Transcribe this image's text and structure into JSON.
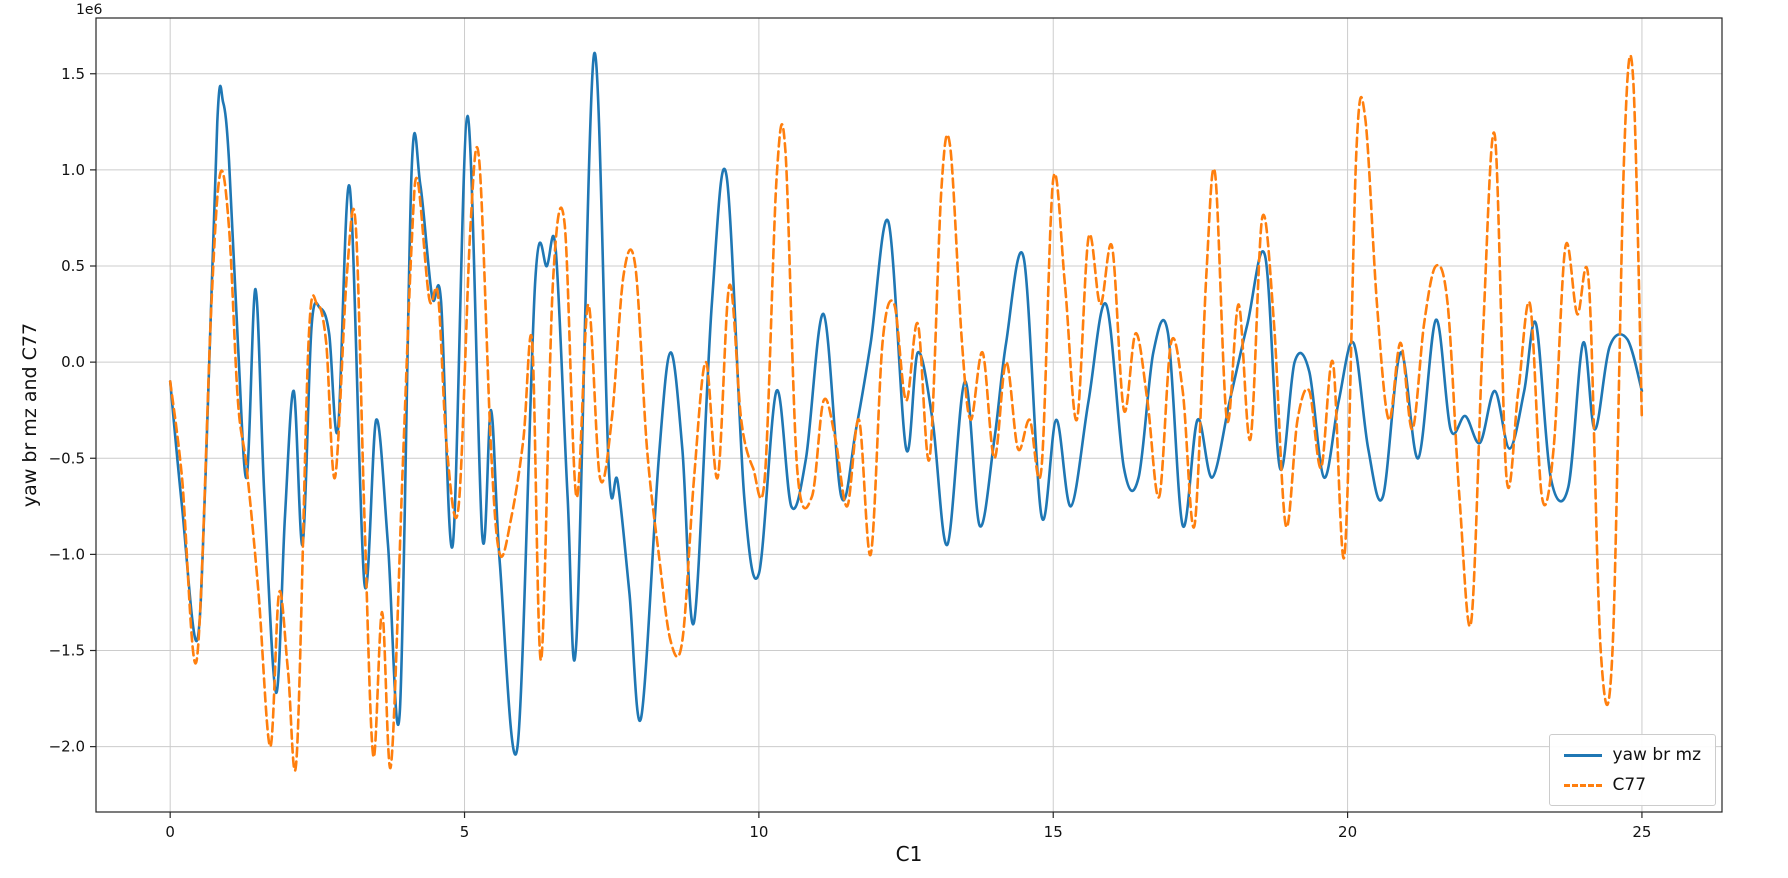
{
  "chart_data": {
    "type": "line",
    "title": "",
    "xlabel": "C1",
    "ylabel": "yaw br mz and C77",
    "y_offset_text": "1e6",
    "y_unit_scale": 1000000,
    "grid": true,
    "legend_position": "lower right",
    "xlim": [
      -1.26,
      26.36
    ],
    "ylim": [
      -2.34,
      1.79
    ],
    "xticks": [
      0,
      5,
      10,
      15,
      20,
      25
    ],
    "xtick_labels": [
      "0",
      "5",
      "10",
      "15",
      "20",
      "25"
    ],
    "yticks": [
      -2.0,
      -1.5,
      -1.0,
      -0.5,
      0.0,
      0.5,
      1.0,
      1.5
    ],
    "ytick_labels": [
      "−2.0",
      "−1.5",
      "−1.0",
      "−0.5",
      "0.0",
      "0.5",
      "1.0",
      "1.5"
    ],
    "colors": {
      "series1": "#1f77b4",
      "series2": "#ff7f0e",
      "grid": "#cccccc",
      "spine": "#262626",
      "background": "#ffffff"
    },
    "series": [
      {
        "name": "yaw br mz",
        "color": "#1f77b4",
        "style": "solid",
        "points": [
          [
            0,
            -0.1
          ],
          [
            0.2,
            -0.75
          ],
          [
            0.45,
            -1.45
          ],
          [
            0.6,
            -0.6
          ],
          [
            0.8,
            1.25
          ],
          [
            0.9,
            1.35
          ],
          [
            1.0,
            1.05
          ],
          [
            1.15,
            0.1
          ],
          [
            1.3,
            -0.6
          ],
          [
            1.45,
            0.38
          ],
          [
            1.6,
            -0.7
          ],
          [
            1.8,
            -1.72
          ],
          [
            1.95,
            -0.8
          ],
          [
            2.1,
            -0.15
          ],
          [
            2.25,
            -0.95
          ],
          [
            2.4,
            0.18
          ],
          [
            2.55,
            0.28
          ],
          [
            2.7,
            0.15
          ],
          [
            2.85,
            -0.35
          ],
          [
            3.05,
            0.91
          ],
          [
            3.3,
            -1.15
          ],
          [
            3.5,
            -0.3
          ],
          [
            3.7,
            -0.95
          ],
          [
            3.9,
            -1.82
          ],
          [
            4.1,
            0.98
          ],
          [
            4.25,
            0.92
          ],
          [
            4.45,
            0.34
          ],
          [
            4.6,
            0.32
          ],
          [
            4.8,
            -0.95
          ],
          [
            5.05,
            1.28
          ],
          [
            5.3,
            -0.9
          ],
          [
            5.45,
            -0.25
          ],
          [
            5.6,
            -1.05
          ],
          [
            5.9,
            -2.0
          ],
          [
            6.2,
            0.42
          ],
          [
            6.4,
            0.5
          ],
          [
            6.55,
            0.58
          ],
          [
            6.75,
            -0.7
          ],
          [
            6.9,
            -1.45
          ],
          [
            7.2,
            1.6
          ],
          [
            7.45,
            -0.55
          ],
          [
            7.6,
            -0.62
          ],
          [
            7.8,
            -1.2
          ],
          [
            8.0,
            -1.85
          ],
          [
            8.3,
            -0.5
          ],
          [
            8.5,
            0.05
          ],
          [
            8.7,
            -0.45
          ],
          [
            8.9,
            -1.35
          ],
          [
            9.2,
            0.3
          ],
          [
            9.45,
            0.97
          ],
          [
            9.75,
            -0.7
          ],
          [
            10.0,
            -1.1
          ],
          [
            10.3,
            -0.15
          ],
          [
            10.55,
            -0.75
          ],
          [
            10.8,
            -0.5
          ],
          [
            11.1,
            0.25
          ],
          [
            11.4,
            -0.7
          ],
          [
            11.65,
            -0.35
          ],
          [
            11.9,
            0.1
          ],
          [
            12.2,
            0.73
          ],
          [
            12.5,
            -0.45
          ],
          [
            12.7,
            0.05
          ],
          [
            12.95,
            -0.3
          ],
          [
            13.2,
            -0.95
          ],
          [
            13.5,
            -0.1
          ],
          [
            13.75,
            -0.85
          ],
          [
            14.0,
            -0.4
          ],
          [
            14.2,
            0.1
          ],
          [
            14.5,
            0.54
          ],
          [
            14.8,
            -0.8
          ],
          [
            15.05,
            -0.3
          ],
          [
            15.3,
            -0.75
          ],
          [
            15.6,
            -0.2
          ],
          [
            15.9,
            0.3
          ],
          [
            16.2,
            -0.55
          ],
          [
            16.45,
            -0.6
          ],
          [
            16.7,
            0.05
          ],
          [
            16.95,
            0.15
          ],
          [
            17.2,
            -0.85
          ],
          [
            17.45,
            -0.3
          ],
          [
            17.7,
            -0.6
          ],
          [
            18.0,
            -0.2
          ],
          [
            18.3,
            0.2
          ],
          [
            18.6,
            0.55
          ],
          [
            18.85,
            -0.55
          ],
          [
            19.1,
            0.0
          ],
          [
            19.35,
            -0.05
          ],
          [
            19.6,
            -0.6
          ],
          [
            19.85,
            -0.2
          ],
          [
            20.1,
            0.1
          ],
          [
            20.35,
            -0.45
          ],
          [
            20.6,
            -0.7
          ],
          [
            20.9,
            0.05
          ],
          [
            21.2,
            -0.5
          ],
          [
            21.5,
            0.22
          ],
          [
            21.75,
            -0.35
          ],
          [
            22.0,
            -0.28
          ],
          [
            22.25,
            -0.42
          ],
          [
            22.5,
            -0.15
          ],
          [
            22.75,
            -0.45
          ],
          [
            23.0,
            -0.15
          ],
          [
            23.2,
            0.2
          ],
          [
            23.45,
            -0.6
          ],
          [
            23.75,
            -0.65
          ],
          [
            24.0,
            0.1
          ],
          [
            24.2,
            -0.35
          ],
          [
            24.45,
            0.08
          ],
          [
            24.75,
            0.12
          ],
          [
            25.0,
            -0.15
          ]
        ]
      },
      {
        "name": "C77",
        "color": "#ff7f0e",
        "style": "dashed",
        "points": [
          [
            0,
            -0.1
          ],
          [
            0.2,
            -0.6
          ],
          [
            0.45,
            -1.55
          ],
          [
            0.7,
            0.3
          ],
          [
            0.85,
            0.98
          ],
          [
            1.0,
            0.7
          ],
          [
            1.15,
            -0.2
          ],
          [
            1.3,
            -0.55
          ],
          [
            1.5,
            -1.2
          ],
          [
            1.7,
            -2.0
          ],
          [
            1.85,
            -1.2
          ],
          [
            2.0,
            -1.6
          ],
          [
            2.15,
            -2.05
          ],
          [
            2.35,
            0.1
          ],
          [
            2.5,
            0.3
          ],
          [
            2.65,
            0.1
          ],
          [
            2.8,
            -0.6
          ],
          [
            3.0,
            0.45
          ],
          [
            3.15,
            0.72
          ],
          [
            3.3,
            -0.8
          ],
          [
            3.45,
            -2.05
          ],
          [
            3.6,
            -1.3
          ],
          [
            3.75,
            -2.1
          ],
          [
            3.95,
            -0.55
          ],
          [
            4.1,
            0.6
          ],
          [
            4.2,
            0.95
          ],
          [
            4.4,
            0.33
          ],
          [
            4.55,
            0.35
          ],
          [
            4.7,
            -0.45
          ],
          [
            4.9,
            -0.75
          ],
          [
            5.1,
            0.7
          ],
          [
            5.25,
            1.05
          ],
          [
            5.45,
            -0.45
          ],
          [
            5.6,
            -1.0
          ],
          [
            5.8,
            -0.8
          ],
          [
            6.0,
            -0.4
          ],
          [
            6.15,
            0.1
          ],
          [
            6.3,
            -1.55
          ],
          [
            6.5,
            0.4
          ],
          [
            6.7,
            0.72
          ],
          [
            6.9,
            -0.7
          ],
          [
            7.1,
            0.3
          ],
          [
            7.3,
            -0.6
          ],
          [
            7.5,
            -0.3
          ],
          [
            7.7,
            0.45
          ],
          [
            7.9,
            0.5
          ],
          [
            8.1,
            -0.45
          ],
          [
            8.3,
            -1.0
          ],
          [
            8.5,
            -1.45
          ],
          [
            8.7,
            -1.45
          ],
          [
            8.9,
            -0.6
          ],
          [
            9.1,
            0.0
          ],
          [
            9.3,
            -0.6
          ],
          [
            9.5,
            0.4
          ],
          [
            9.7,
            -0.3
          ],
          [
            9.9,
            -0.55
          ],
          [
            10.1,
            -0.6
          ],
          [
            10.3,
            0.95
          ],
          [
            10.45,
            1.1
          ],
          [
            10.65,
            -0.55
          ],
          [
            10.9,
            -0.7
          ],
          [
            11.1,
            -0.2
          ],
          [
            11.3,
            -0.4
          ],
          [
            11.5,
            -0.75
          ],
          [
            11.7,
            -0.3
          ],
          [
            11.9,
            -1.0
          ],
          [
            12.1,
            0.1
          ],
          [
            12.3,
            0.3
          ],
          [
            12.5,
            -0.2
          ],
          [
            12.7,
            0.2
          ],
          [
            12.9,
            -0.5
          ],
          [
            13.1,
            0.9
          ],
          [
            13.25,
            1.12
          ],
          [
            13.45,
            0.1
          ],
          [
            13.6,
            -0.3
          ],
          [
            13.8,
            0.05
          ],
          [
            14.0,
            -0.5
          ],
          [
            14.2,
            0.0
          ],
          [
            14.4,
            -0.45
          ],
          [
            14.6,
            -0.3
          ],
          [
            14.8,
            -0.55
          ],
          [
            15.0,
            0.95
          ],
          [
            15.2,
            0.4
          ],
          [
            15.4,
            -0.3
          ],
          [
            15.6,
            0.65
          ],
          [
            15.8,
            0.3
          ],
          [
            16.0,
            0.6
          ],
          [
            16.2,
            -0.25
          ],
          [
            16.4,
            0.15
          ],
          [
            16.6,
            -0.2
          ],
          [
            16.8,
            -0.7
          ],
          [
            17.0,
            0.1
          ],
          [
            17.2,
            -0.15
          ],
          [
            17.4,
            -0.85
          ],
          [
            17.6,
            0.45
          ],
          [
            17.75,
            0.98
          ],
          [
            17.95,
            -0.3
          ],
          [
            18.15,
            0.3
          ],
          [
            18.35,
            -0.4
          ],
          [
            18.55,
            0.75
          ],
          [
            18.75,
            0.2
          ],
          [
            18.95,
            -0.85
          ],
          [
            19.15,
            -0.3
          ],
          [
            19.35,
            -0.15
          ],
          [
            19.55,
            -0.55
          ],
          [
            19.75,
            0.0
          ],
          [
            19.95,
            -1.0
          ],
          [
            20.15,
            1.1
          ],
          [
            20.3,
            1.27
          ],
          [
            20.5,
            0.3
          ],
          [
            20.7,
            -0.3
          ],
          [
            20.9,
            0.1
          ],
          [
            21.1,
            -0.35
          ],
          [
            21.3,
            0.2
          ],
          [
            21.5,
            0.5
          ],
          [
            21.7,
            0.3
          ],
          [
            21.9,
            -0.7
          ],
          [
            22.1,
            -1.35
          ],
          [
            22.3,
            0.15
          ],
          [
            22.5,
            1.18
          ],
          [
            22.7,
            -0.6
          ],
          [
            22.9,
            -0.15
          ],
          [
            23.1,
            0.3
          ],
          [
            23.3,
            -0.7
          ],
          [
            23.5,
            -0.45
          ],
          [
            23.7,
            0.6
          ],
          [
            23.9,
            0.25
          ],
          [
            24.1,
            0.4
          ],
          [
            24.3,
            -1.5
          ],
          [
            24.5,
            -1.5
          ],
          [
            24.7,
            1.1
          ],
          [
            24.85,
            1.48
          ],
          [
            25.0,
            -0.3
          ]
        ]
      }
    ]
  }
}
